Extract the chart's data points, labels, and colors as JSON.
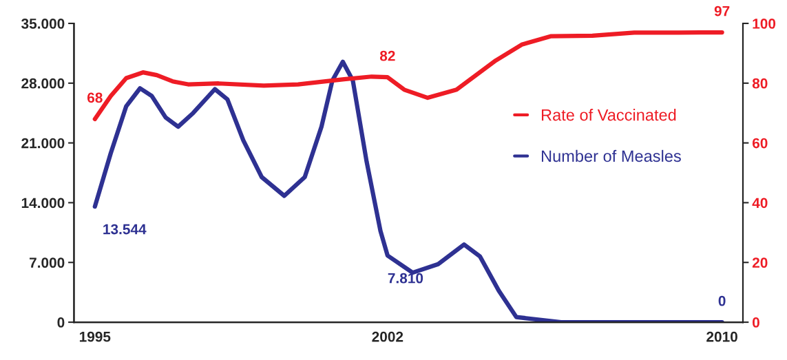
{
  "chart_data": {
    "type": "line",
    "xlim": [
      1994.5,
      2010.5
    ],
    "xticks": [
      1995,
      2002,
      2010
    ],
    "ylim": [
      0,
      35000
    ],
    "yticks": [
      {
        "value": 0,
        "label": "0"
      },
      {
        "value": 7000,
        "label": "7.000"
      },
      {
        "value": 14000,
        "label": "14.000"
      },
      {
        "value": 21000,
        "label": "21.000"
      },
      {
        "value": 28000,
        "label": "28.000"
      },
      {
        "value": 35000,
        "label": "35.000"
      }
    ],
    "y2lim": [
      0,
      100
    ],
    "y2ticks": [
      0,
      20,
      40,
      60,
      80,
      100
    ],
    "legend": "right",
    "grid": false,
    "series": [
      {
        "name": "Rate of Vaccinated",
        "color": "#ee1c25",
        "axis": "y2",
        "x": [
          1995,
          1995.38,
          1995.75,
          1996.15,
          1996.48,
          1996.86,
          1997.23,
          1997.96,
          1999.04,
          1999.86,
          2000.96,
          2001.62,
          2002,
          2002.4,
          2002.96,
          2003.65,
          2004.59,
          2005.21,
          2005.9,
          2006.9,
          2007.9,
          2008.96,
          2010
        ],
        "values": [
          68,
          75.7,
          81.7,
          83.6,
          82.7,
          80.6,
          79.6,
          79.9,
          79.2,
          79.6,
          81.3,
          82.2,
          82,
          77.8,
          75.1,
          77.8,
          87.6,
          92.9,
          95.7,
          95.9,
          96.9,
          96.9,
          97
        ],
        "value_labels": [
          "68",
          null,
          null,
          null,
          null,
          null,
          null,
          null,
          null,
          null,
          null,
          null,
          "82",
          null,
          null,
          null,
          null,
          null,
          null,
          null,
          null,
          null,
          "97"
        ]
      },
      {
        "name": "Number of Measles",
        "color": "#2e3192",
        "axis": "y",
        "x": [
          1995,
          1995.38,
          1995.75,
          1996.08,
          1996.36,
          1996.69,
          1996.99,
          1997.35,
          1997.87,
          1998.17,
          1998.55,
          1998.99,
          1999.53,
          2000.02,
          2000.42,
          2000.68,
          2000.93,
          2001.17,
          2001.5,
          2001.83,
          2002,
          2002.6,
          2003.21,
          2003.83,
          2004.21,
          2004.66,
          2005.08,
          2006.15,
          2008.35,
          2010
        ],
        "values": [
          13544,
          19800,
          25300,
          27400,
          26500,
          24000,
          22900,
          24500,
          27300,
          26100,
          21300,
          17000,
          14800,
          17000,
          22900,
          28300,
          30500,
          28300,
          18800,
          10700,
          7810,
          5800,
          6800,
          9100,
          7700,
          3700,
          600,
          0,
          0,
          0
        ],
        "value_labels": [
          "13.544",
          null,
          null,
          null,
          null,
          null,
          null,
          null,
          null,
          null,
          null,
          null,
          null,
          null,
          null,
          null,
          null,
          null,
          null,
          null,
          "7.810",
          null,
          null,
          null,
          null,
          null,
          null,
          null,
          null,
          "0"
        ]
      }
    ]
  }
}
